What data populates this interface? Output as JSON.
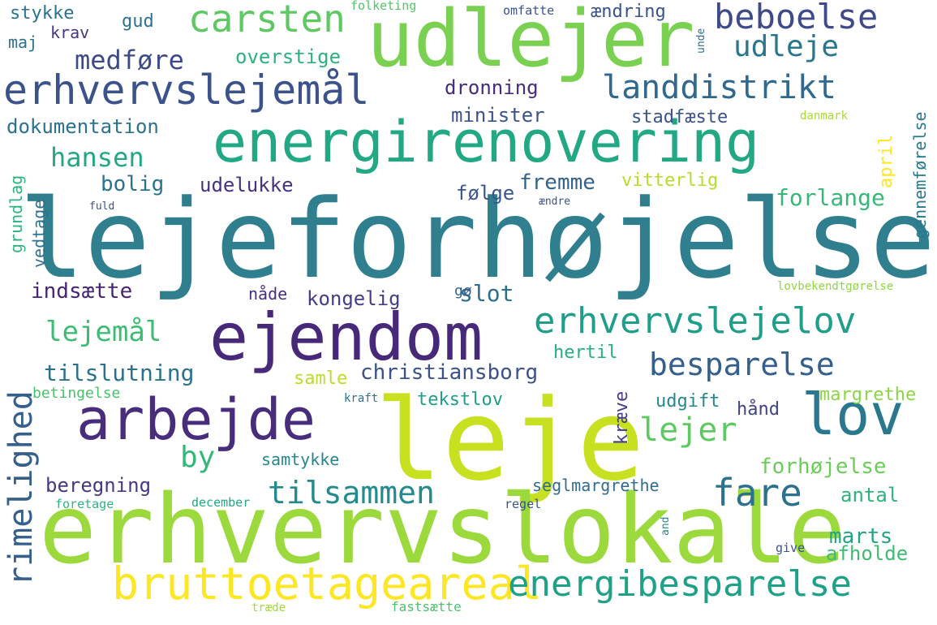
{
  "words": [
    {
      "text": "lejeforhøjelse",
      "color": "#2f7f8f"
    },
    {
      "text": "leje",
      "color": "#c7e020"
    },
    {
      "text": "erhvervslokale",
      "color": "#9bd93c"
    },
    {
      "text": "udlejer",
      "color": "#7ad151"
    },
    {
      "text": "energirenovering",
      "color": "#22a884"
    },
    {
      "text": "ejendom",
      "color": "#482878"
    },
    {
      "text": "arbejde",
      "color": "#472d7b"
    },
    {
      "text": "lov",
      "color": "#2a788e"
    },
    {
      "text": "erhvervslejemål",
      "color": "#3b528b"
    },
    {
      "text": "bruttoetageareal",
      "color": "#fde725"
    },
    {
      "text": "energibesparelse",
      "color": "#1fa187"
    },
    {
      "text": "erhvervslejelov",
      "color": "#1f9e89"
    },
    {
      "text": "carsten",
      "color": "#5ec962"
    },
    {
      "text": "beboelse",
      "color": "#3e4a89"
    },
    {
      "text": "landdistrikt",
      "color": "#31688e"
    },
    {
      "text": "tilsammen",
      "color": "#238a8d"
    },
    {
      "text": "rimelighed",
      "color": "#355f8d"
    },
    {
      "text": "fare",
      "color": "#2c728e"
    },
    {
      "text": "besparelse",
      "color": "#355f8d"
    },
    {
      "text": "medføre",
      "color": "#3e4989"
    },
    {
      "text": "udleje",
      "color": "#2a768e"
    },
    {
      "text": "hansen",
      "color": "#22a884"
    },
    {
      "text": "lejemål",
      "color": "#3fbc73"
    },
    {
      "text": "lejer",
      "color": "#5ec962"
    },
    {
      "text": "by",
      "color": "#35b779"
    },
    {
      "text": "tilslutning",
      "color": "#2c728e"
    },
    {
      "text": "christiansborg",
      "color": "#3b528b"
    },
    {
      "text": "dokumentation",
      "color": "#2c718e"
    },
    {
      "text": "bolig",
      "color": "#2c728e"
    },
    {
      "text": "udelukke",
      "color": "#46327e"
    },
    {
      "text": "fremme",
      "color": "#33638d"
    },
    {
      "text": "følge",
      "color": "#39568c"
    },
    {
      "text": "indsætte",
      "color": "#482576"
    },
    {
      "text": "kongelig",
      "color": "#433e85"
    },
    {
      "text": "slot",
      "color": "#2e6e8e"
    },
    {
      "text": "minister",
      "color": "#3b528b"
    },
    {
      "text": "dronning",
      "color": "#472c7a"
    },
    {
      "text": "overstige",
      "color": "#2db27d"
    },
    {
      "text": "stadfæste",
      "color": "#3b528b"
    },
    {
      "text": "forlange",
      "color": "#37b878"
    },
    {
      "text": "vitterlig",
      "color": "#b5de2b"
    },
    {
      "text": "hertil",
      "color": "#26ad81"
    },
    {
      "text": "samle",
      "color": "#b8de29"
    },
    {
      "text": "tekstlov",
      "color": "#1f9e89"
    },
    {
      "text": "udgift",
      "color": "#23898e"
    },
    {
      "text": "margrethe",
      "color": "#8bd646"
    },
    {
      "text": "forhøjelse",
      "color": "#6ccd5a"
    },
    {
      "text": "beregning",
      "color": "#443983"
    },
    {
      "text": "samtykke",
      "color": "#24878e"
    },
    {
      "text": "seglmargrethe",
      "color": "#2f6c8e"
    },
    {
      "text": "antal",
      "color": "#2eb37c"
    },
    {
      "text": "marts",
      "color": "#21a685"
    },
    {
      "text": "afholde",
      "color": "#3fbc73"
    },
    {
      "text": "gud",
      "color": "#2c728e"
    },
    {
      "text": "ændring",
      "color": "#3a538b"
    },
    {
      "text": "stykke",
      "color": "#2c718e"
    },
    {
      "text": "krav",
      "color": "#453781"
    },
    {
      "text": "maj",
      "color": "#2c728e"
    },
    {
      "text": "nåde",
      "color": "#472f7d"
    },
    {
      "text": "gø",
      "color": "#355f8d"
    },
    {
      "text": "hånd",
      "color": "#414487"
    },
    {
      "text": "betingelse",
      "color": "#4ac16d"
    },
    {
      "text": "folketing",
      "color": "#54c568"
    },
    {
      "text": "omfatte",
      "color": "#3b528b"
    },
    {
      "text": "danmark",
      "color": "#a8db34"
    },
    {
      "text": "lovbekendtgørelse",
      "color": "#8fd744"
    },
    {
      "text": "foretage",
      "color": "#2fb47c"
    },
    {
      "text": "december",
      "color": "#22a884"
    },
    {
      "text": "regel",
      "color": "#3b528b"
    },
    {
      "text": "give",
      "color": "#3b528b"
    },
    {
      "text": "fastsætte",
      "color": "#4ac16d"
    },
    {
      "text": "træde",
      "color": "#a2da37"
    },
    {
      "text": "kraft",
      "color": "#2c728e"
    },
    {
      "text": "fuld",
      "color": "#3b528b"
    },
    {
      "text": "ændre",
      "color": "#3b528b"
    },
    {
      "text": "grundlag",
      "color": "#2db27d"
    },
    {
      "text": "vedtage",
      "color": "#2c718e"
    },
    {
      "text": "april",
      "color": "#fde725"
    },
    {
      "text": "gennemførelse",
      "color": "#2a788e"
    },
    {
      "text": "kræve",
      "color": "#433e85"
    },
    {
      "text": "unde",
      "color": "#2e6f8e"
    },
    {
      "text": "and",
      "color": "#238a8d"
    }
  ]
}
